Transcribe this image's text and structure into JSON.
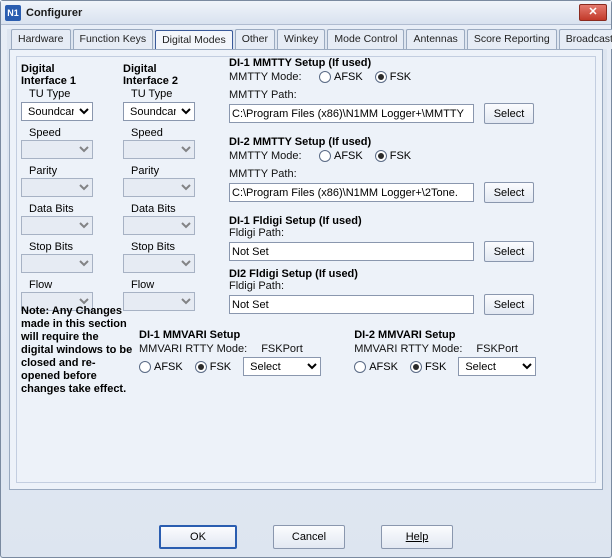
{
  "window": {
    "title": "Configurer",
    "icon_text": "N1"
  },
  "tabs": {
    "items": [
      "Hardware",
      "Function Keys",
      "Digital Modes",
      "Other",
      "Winkey",
      "Mode Control",
      "Antennas",
      "Score Reporting",
      "Broadcast Data"
    ],
    "active_index": 2
  },
  "di_columns": {
    "col1_title": "Digital Interface 1",
    "col2_title": "Digital Interface 2",
    "tu_type_label": "TU Type",
    "tu_type_value": "Soundcard",
    "labels": [
      "Speed",
      "Parity",
      "Data Bits",
      "Stop Bits",
      "Flow"
    ]
  },
  "mmtty": {
    "di1_title": "DI-1 MMTTY Setup (If used)",
    "di2_title": "DI-2 MMTTY Setup (If used)",
    "mode_label": "MMTTY Mode:",
    "afsk_label": "AFSK",
    "fsk_label": "FSK",
    "path_label": "MMTTY Path:",
    "di1_path": "C:\\Program Files (x86)\\N1MM Logger+\\MMTTY",
    "di2_path": "C:\\Program Files (x86)\\N1MM Logger+\\2Tone.",
    "select_label": "Select"
  },
  "fldigi": {
    "di1_title": "DI-1 Fldigi Setup (If used)",
    "di2_title": "DI2 Fldigi Setup (If used)",
    "path_label": "Fldigi Path:",
    "value": "Not Set",
    "select_label": "Select"
  },
  "mmvari": {
    "di1_title": "DI-1 MMVARI Setup",
    "di2_title": "DI-2 MMVARI Setup",
    "rtty_mode_label": "MMVARI RTTY Mode:",
    "afsk_label": "AFSK",
    "fsk_label": "FSK",
    "fskport_label": "FSKPort",
    "fskport_value": "Select"
  },
  "note": "Note: Any Changes made in this section will require the digital windows to be closed and re-opened before changes take effect.",
  "buttons": {
    "ok": "OK",
    "cancel": "Cancel",
    "help": "Help"
  },
  "colors": {
    "accent": "#2a5db0",
    "panel_bg": "#edf2f9",
    "border": "#9aaac0"
  }
}
